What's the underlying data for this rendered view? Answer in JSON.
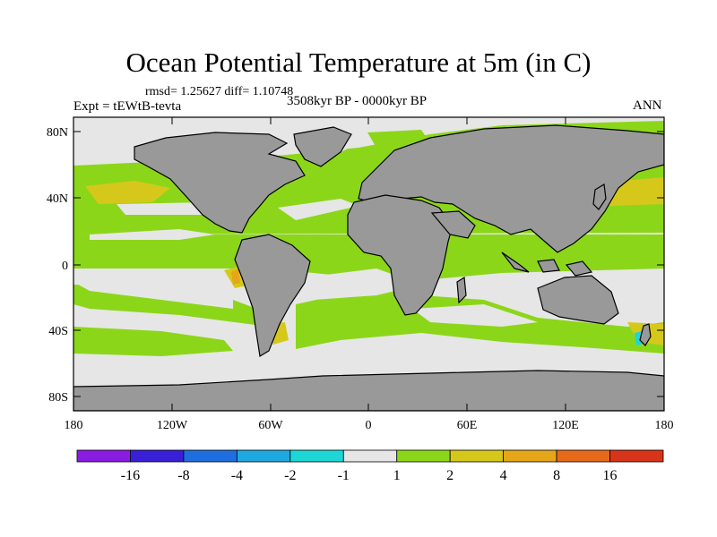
{
  "title": "Ocean Potential Temperature at 5m (in C)",
  "stats": "rmsd= 1.25627  diff= 1.10748",
  "experiment": "Expt = tEWtB-tevta",
  "period": "3508kyr BP - 0000kyr BP",
  "season": "ANN",
  "y_ticks": [
    "80N",
    "40N",
    "0",
    "40S",
    "80S"
  ],
  "x_ticks": [
    "180",
    "120W",
    "60W",
    "0",
    "60E",
    "120E",
    "180"
  ],
  "colorbar": {
    "labels": [
      "-16",
      "-8",
      "-4",
      "-2",
      "-1",
      "1",
      "2",
      "4",
      "8",
      "16"
    ],
    "colors": [
      "#8a1be0",
      "#3a1fd8",
      "#1f6ee0",
      "#1fa8e0",
      "#1fd6d6",
      "#e6e6e6",
      "#8cd61a",
      "#d6c81a",
      "#e6a61a",
      "#e66a1a",
      "#d8341a"
    ]
  },
  "colors": {
    "land": "#999999",
    "ocean_neutral": "#e6e6e6",
    "ocean_warm": "#8cd61a",
    "ocean_warmer": "#d6c81a",
    "ocean_hot": "#e6a61a",
    "ocean_cold": "#1fd6d6"
  }
}
